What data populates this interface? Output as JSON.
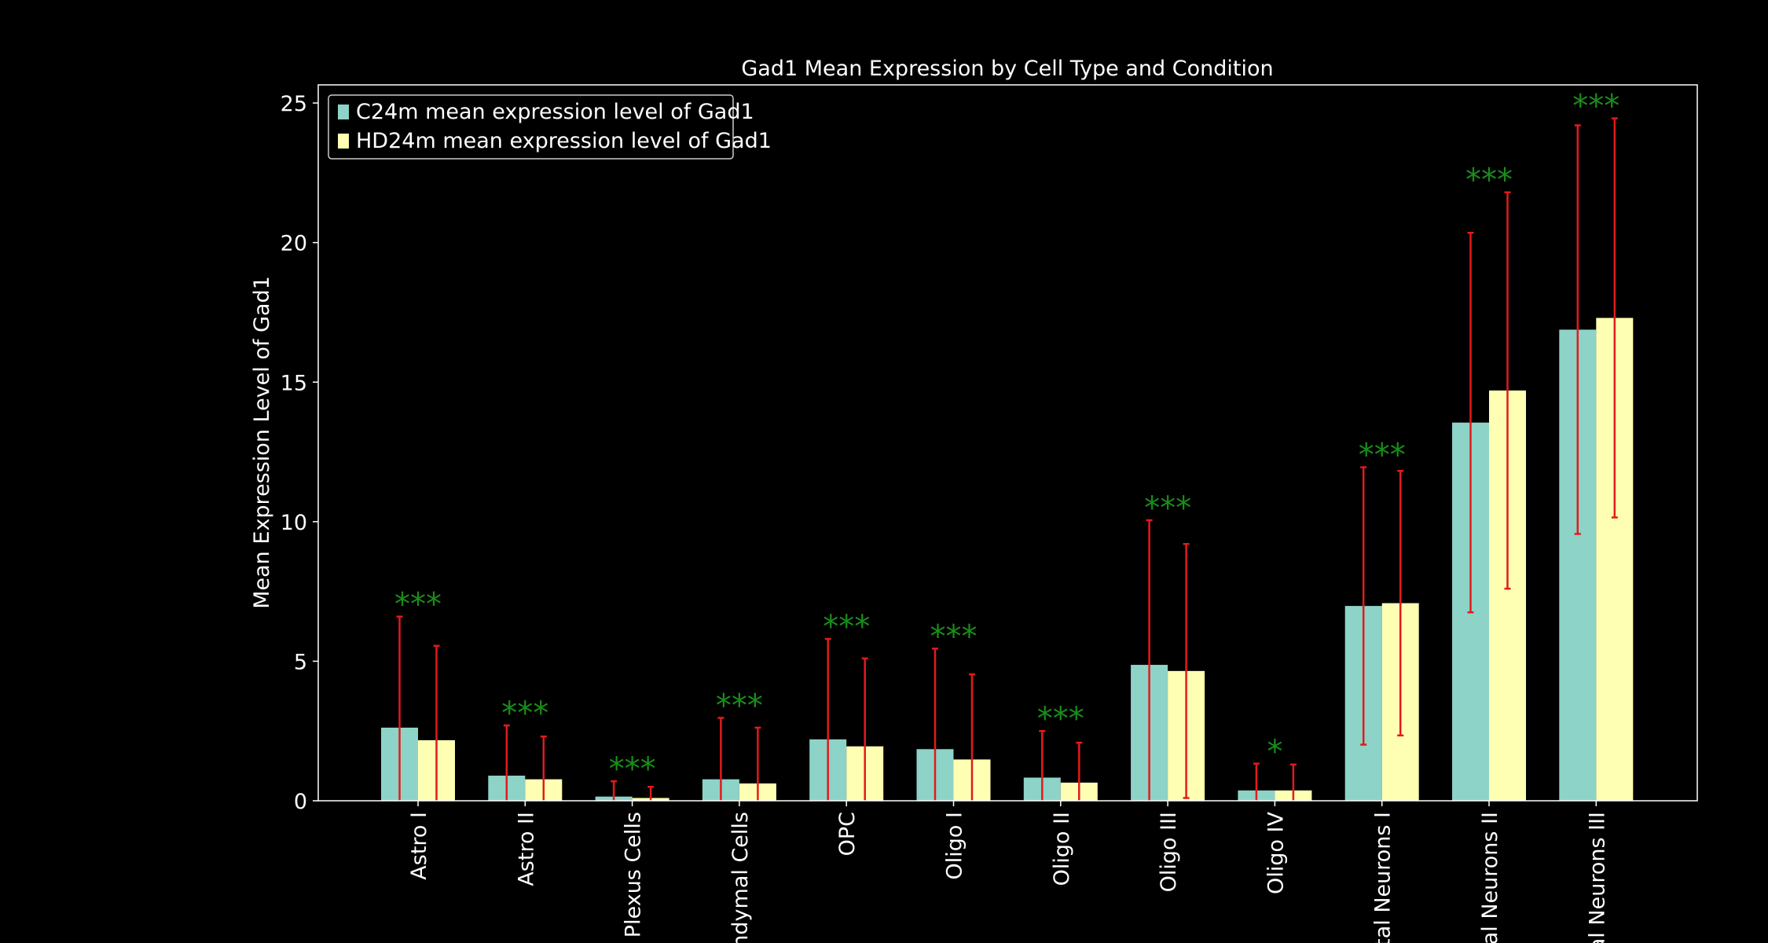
{
  "chart_data": {
    "type": "bar",
    "title": "Gad1 Mean Expression by Cell Type and Condition",
    "y_label": "Mean Expression Level of Gad1",
    "categories": [
      "Astro I",
      "Astro II",
      "Plexus Cells",
      "ndymal Cells",
      "OPC",
      "Oligo I",
      "Oligo II",
      "Oligo III",
      "Oligo IV",
      "tal Neurons I",
      "al Neurons II",
      "al Neurons III"
    ],
    "series": [
      {
        "name": "C24m mean expression level of Gad1",
        "color": "#8dd3c7",
        "values": [
          2.62,
          0.9,
          0.15,
          0.77,
          2.2,
          1.85,
          0.83,
          4.87,
          0.37,
          6.98,
          13.55,
          16.88
        ],
        "errors": [
          3.98,
          1.8,
          0.55,
          2.2,
          3.6,
          3.6,
          1.67,
          5.18,
          0.96,
          4.97,
          6.8,
          7.32
        ]
      },
      {
        "name": "HD24m mean expression level of Gad1",
        "color": "#ffffb3",
        "values": [
          2.17,
          0.77,
          0.1,
          0.62,
          1.95,
          1.48,
          0.65,
          4.65,
          0.37,
          7.08,
          14.7,
          17.3
        ],
        "errors": [
          3.38,
          1.53,
          0.4,
          2.0,
          3.15,
          3.05,
          1.43,
          4.55,
          0.93,
          4.74,
          7.1,
          7.15
        ]
      }
    ],
    "annotations": [
      "***",
      "***",
      "***",
      "***",
      "***",
      "***",
      "***",
      "***",
      "*",
      "***",
      "***",
      "***"
    ],
    "error_color": "#e31a1c",
    "annotation_color": "#1a8c1a",
    "ylim": [
      0,
      25.65
    ],
    "yticks": [
      0,
      5,
      10,
      15,
      20,
      25
    ],
    "legend": "upper left"
  }
}
